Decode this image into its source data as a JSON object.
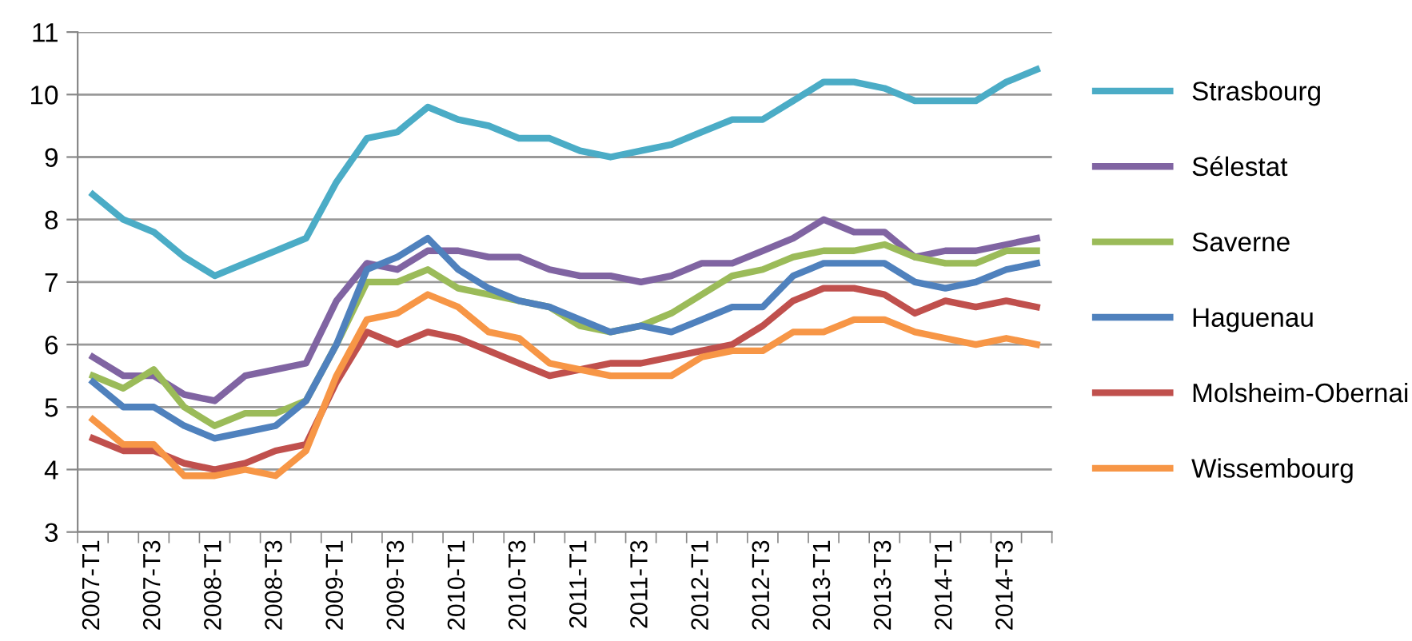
{
  "chart_data": {
    "type": "line",
    "categories": [
      "2007-T1",
      null,
      "2007-T3",
      null,
      "2008-T1",
      null,
      "2008-T3",
      null,
      "2009-T1",
      null,
      "2009-T3",
      null,
      "2010-T1",
      null,
      "2010-T3",
      null,
      "2011-T1",
      null,
      "2011-T3",
      null,
      "2012-T1",
      null,
      "2012-T3",
      null,
      "2013-T1",
      null,
      "2013-T3",
      null,
      "2014-T1",
      null,
      "2014-T3",
      null
    ],
    "series": [
      {
        "name": "Strasbourg",
        "color": "#4bacc6",
        "values": [
          8.4,
          8.0,
          7.8,
          7.4,
          7.1,
          7.3,
          7.5,
          7.7,
          8.6,
          9.3,
          9.4,
          9.8,
          9.6,
          9.5,
          9.3,
          9.3,
          9.1,
          9.0,
          9.1,
          9.2,
          9.4,
          9.6,
          9.6,
          9.9,
          10.2,
          10.2,
          10.1,
          9.9,
          9.9,
          9.9,
          10.2,
          10.4
        ]
      },
      {
        "name": "Sélestat",
        "color": "#8064a2",
        "values": [
          5.8,
          5.5,
          5.5,
          5.2,
          5.1,
          5.5,
          5.6,
          5.7,
          6.7,
          7.3,
          7.2,
          7.5,
          7.5,
          7.4,
          7.4,
          7.2,
          7.1,
          7.1,
          7.0,
          7.1,
          7.3,
          7.3,
          7.5,
          7.7,
          8.0,
          7.8,
          7.8,
          7.4,
          7.5,
          7.5,
          7.6,
          7.7
        ]
      },
      {
        "name": "Saverne",
        "color": "#9bbb59",
        "values": [
          5.5,
          5.3,
          5.6,
          5.0,
          4.7,
          4.9,
          4.9,
          5.1,
          6.0,
          7.0,
          7.0,
          7.2,
          6.9,
          6.8,
          6.7,
          6.6,
          6.3,
          6.2,
          6.3,
          6.5,
          6.8,
          7.1,
          7.2,
          7.4,
          7.5,
          7.5,
          7.6,
          7.4,
          7.3,
          7.3,
          7.5,
          7.5
        ]
      },
      {
        "name": "Haguenau",
        "color": "#4f81bd",
        "values": [
          5.4,
          5.0,
          5.0,
          4.7,
          4.5,
          4.6,
          4.7,
          5.1,
          6.0,
          7.2,
          7.4,
          7.7,
          7.2,
          6.9,
          6.7,
          6.6,
          6.4,
          6.2,
          6.3,
          6.2,
          6.4,
          6.6,
          6.6,
          7.1,
          7.3,
          7.3,
          7.3,
          7.0,
          6.9,
          7.0,
          7.2,
          7.3
        ]
      },
      {
        "name": "Molsheim-Obernai",
        "color": "#c0504d",
        "values": [
          4.5,
          4.3,
          4.3,
          4.1,
          4.0,
          4.1,
          4.3,
          4.4,
          5.4,
          6.2,
          6.0,
          6.2,
          6.1,
          5.9,
          5.7,
          5.5,
          5.6,
          5.7,
          5.7,
          5.8,
          5.9,
          6.0,
          6.3,
          6.7,
          6.9,
          6.9,
          6.8,
          6.5,
          6.7,
          6.6,
          6.7,
          6.6
        ]
      },
      {
        "name": "Wissembourg",
        "color": "#f79646",
        "values": [
          4.8,
          4.4,
          4.4,
          3.9,
          3.9,
          4.0,
          3.9,
          4.3,
          5.5,
          6.4,
          6.5,
          6.8,
          6.6,
          6.2,
          6.1,
          5.7,
          5.6,
          5.5,
          5.5,
          5.5,
          5.8,
          5.9,
          5.9,
          6.2,
          6.2,
          6.4,
          6.4,
          6.2,
          6.1,
          6.0,
          6.1,
          6.0
        ]
      }
    ],
    "ylim": [
      3,
      11
    ],
    "yticks": [
      3,
      4,
      5,
      6,
      7,
      8,
      9,
      10,
      11
    ],
    "grid": "y",
    "legend": "right",
    "marker": "none",
    "line_style": "solid"
  }
}
